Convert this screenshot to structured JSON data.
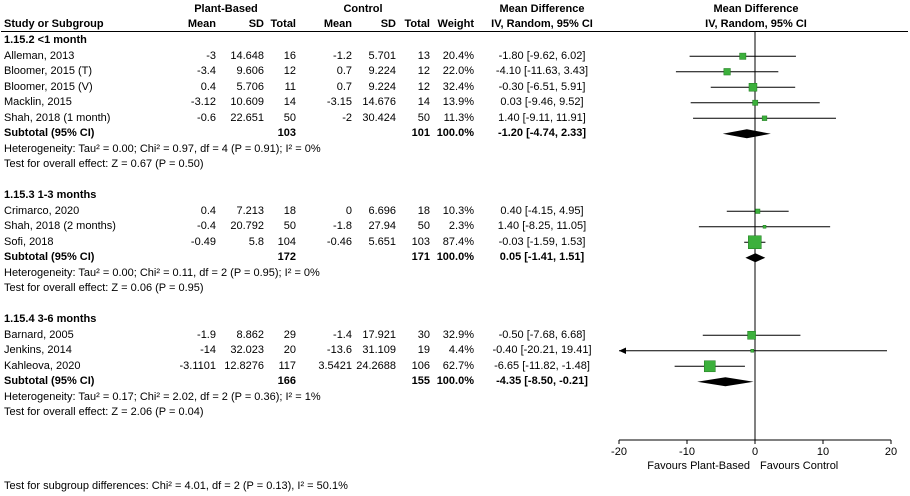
{
  "header": {
    "study_col": "Study or Subgroup",
    "group1": "Plant-Based",
    "group2": "Control",
    "mean": "Mean",
    "sd": "SD",
    "total": "Total",
    "weight": "Weight",
    "md_title": "Mean Difference",
    "md_sub": "IV, Random, 95% CI"
  },
  "footer": {
    "subgroup_test": "Test for subgroup differences: Chi² = 4.01, df = 2 (P = 0.13), I² = 50.1%"
  },
  "chart_data": {
    "type": "forest",
    "effect_measure": "Mean Difference",
    "method": "IV, Random, 95% CI",
    "xlim": [
      -20,
      20
    ],
    "ticks": [
      -20,
      -10,
      0,
      10,
      20
    ],
    "favours_left": "Favours Plant-Based",
    "favours_right": "Favours Control",
    "marker_color": "#3cb03c",
    "marker_border": "#1e7a1e",
    "subgroups": [
      {
        "name": "1.15.2 <1 month",
        "studies": [
          {
            "label": "Alleman, 2013",
            "mean1": "-3",
            "sd1": "14.648",
            "n1": "16",
            "mean2": "-1.2",
            "sd2": "5.701",
            "n2": "13",
            "weight": "20.4%",
            "md": -1.8,
            "lo": -9.62,
            "hi": 6.02,
            "ci_text": "-1.80 [-9.62, 6.02]"
          },
          {
            "label": "Bloomer, 2015 (T)",
            "mean1": "-3.4",
            "sd1": "9.606",
            "n1": "12",
            "mean2": "0.7",
            "sd2": "9.224",
            "n2": "12",
            "weight": "22.0%",
            "md": -4.1,
            "lo": -11.63,
            "hi": 3.43,
            "ci_text": "-4.10 [-11.63, 3.43]"
          },
          {
            "label": "Bloomer, 2015 (V)",
            "mean1": "0.4",
            "sd1": "5.706",
            "n1": "11",
            "mean2": "0.7",
            "sd2": "9.224",
            "n2": "12",
            "weight": "32.4%",
            "md": -0.3,
            "lo": -6.51,
            "hi": 5.91,
            "ci_text": "-0.30 [-6.51, 5.91]"
          },
          {
            "label": "Macklin, 2015",
            "mean1": "-3.12",
            "sd1": "10.609",
            "n1": "14",
            "mean2": "-3.15",
            "sd2": "14.676",
            "n2": "14",
            "weight": "13.9%",
            "md": 0.03,
            "lo": -9.46,
            "hi": 9.52,
            "ci_text": "0.03 [-9.46, 9.52]"
          },
          {
            "label": "Shah, 2018 (1 month)",
            "mean1": "-0.6",
            "sd1": "22.651",
            "n1": "50",
            "mean2": "-2",
            "sd2": "30.424",
            "n2": "50",
            "weight": "11.3%",
            "md": 1.4,
            "lo": -9.11,
            "hi": 11.91,
            "ci_text": "1.40 [-9.11, 11.91]"
          }
        ],
        "subtotal": {
          "label": "Subtotal (95% CI)",
          "n1": "103",
          "n2": "101",
          "weight": "100.0%",
          "md": -1.2,
          "lo": -4.74,
          "hi": 2.33,
          "ci_text": "-1.20 [-4.74, 2.33]"
        },
        "heterogeneity": "Heterogeneity: Tau² = 0.00; Chi² = 0.97, df = 4 (P = 0.91); I² = 0%",
        "overall_effect": "Test for overall effect: Z = 0.67 (P = 0.50)"
      },
      {
        "name": "1.15.3 1-3 months",
        "studies": [
          {
            "label": "Crimarco, 2020",
            "mean1": "0.4",
            "sd1": "7.213",
            "n1": "18",
            "mean2": "0",
            "sd2": "6.696",
            "n2": "18",
            "weight": "10.3%",
            "md": 0.4,
            "lo": -4.15,
            "hi": 4.95,
            "ci_text": "0.40 [-4.15, 4.95]"
          },
          {
            "label": "Shah, 2018 (2 months)",
            "mean1": "-0.4",
            "sd1": "20.792",
            "n1": "50",
            "mean2": "-1.8",
            "sd2": "27.94",
            "n2": "50",
            "weight": "2.3%",
            "md": 1.4,
            "lo": -8.25,
            "hi": 11.05,
            "ci_text": "1.40 [-8.25, 11.05]"
          },
          {
            "label": "Sofi, 2018",
            "mean1": "-0.49",
            "sd1": "5.8",
            "n1": "104",
            "mean2": "-0.46",
            "sd2": "5.651",
            "n2": "103",
            "weight": "87.4%",
            "md": -0.03,
            "lo": -1.59,
            "hi": 1.53,
            "ci_text": "-0.03 [-1.59, 1.53]"
          }
        ],
        "subtotal": {
          "label": "Subtotal (95% CI)",
          "n1": "172",
          "n2": "171",
          "weight": "100.0%",
          "md": 0.05,
          "lo": -1.41,
          "hi": 1.51,
          "ci_text": "0.05 [-1.41, 1.51]"
        },
        "heterogeneity": "Heterogeneity: Tau² = 0.00; Chi² = 0.11, df = 2 (P = 0.95); I² = 0%",
        "overall_effect": "Test for overall effect: Z = 0.06 (P = 0.95)"
      },
      {
        "name": "1.15.4 3-6 months",
        "studies": [
          {
            "label": "Barnard, 2005",
            "mean1": "-1.9",
            "sd1": "8.862",
            "n1": "29",
            "mean2": "-1.4",
            "sd2": "17.921",
            "n2": "30",
            "weight": "32.9%",
            "md": -0.5,
            "lo": -7.68,
            "hi": 6.68,
            "ci_text": "-0.50 [-7.68, 6.68]"
          },
          {
            "label": "Jenkins, 2014",
            "mean1": "-14",
            "sd1": "32.023",
            "n1": "20",
            "mean2": "-13.6",
            "sd2": "31.109",
            "n2": "19",
            "weight": "4.4%",
            "md": -0.4,
            "lo": -20.21,
            "hi": 19.41,
            "ci_text": "-0.40 [-20.21, 19.41]"
          },
          {
            "label": "Kahleova, 2020",
            "mean1": "-3.1101",
            "sd1": "12.8276",
            "n1": "117",
            "mean2": "3.5421",
            "sd2": "24.2688",
            "n2": "106",
            "weight": "62.7%",
            "md": -6.65,
            "lo": -11.82,
            "hi": -1.48,
            "ci_text": "-6.65 [-11.82, -1.48]"
          }
        ],
        "subtotal": {
          "label": "Subtotal (95% CI)",
          "n1": "166",
          "n2": "155",
          "weight": "100.0%",
          "md": -4.35,
          "lo": -8.5,
          "hi": -0.21,
          "ci_text": "-4.35 [-8.50, -0.21]"
        },
        "heterogeneity": "Heterogeneity: Tau² = 0.17; Chi² = 2.02, df = 2 (P = 0.36); I² = 1%",
        "overall_effect": "Test for overall effect: Z = 2.06 (P = 0.04)"
      }
    ]
  }
}
